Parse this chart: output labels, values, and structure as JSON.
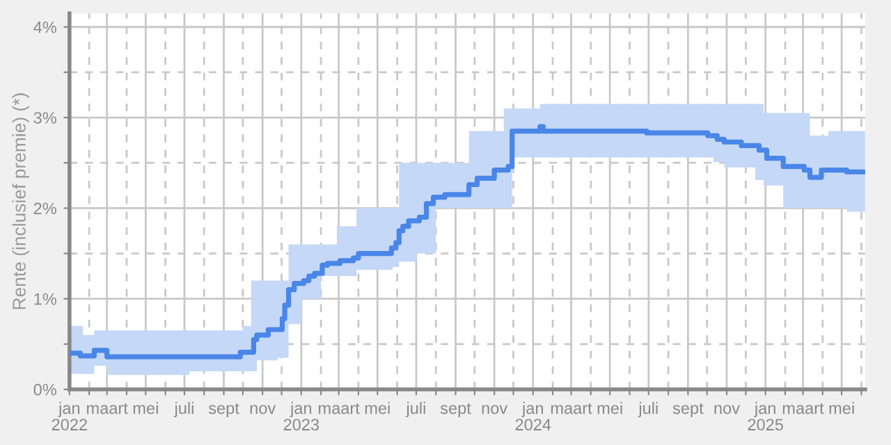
{
  "chart_data": {
    "type": "step",
    "ylabel": "Rente (inclusief premie) (*)",
    "xlim": [
      "2022-01-01",
      "2025-06-07"
    ],
    "ylim": [
      0,
      4.15
    ],
    "xticks": [
      {
        "value": "2022-01-01",
        "label": "jan\n2022"
      },
      {
        "value": "2022-02-01",
        "label": null
      },
      {
        "value": "2022-03-01",
        "label": "maart"
      },
      {
        "value": "2022-04-01",
        "label": null
      },
      {
        "value": "2022-05-01",
        "label": "mei"
      },
      {
        "value": "2022-06-01",
        "label": null
      },
      {
        "value": "2022-07-01",
        "label": "juli"
      },
      {
        "value": "2022-08-01",
        "label": null
      },
      {
        "value": "2022-09-01",
        "label": "sept"
      },
      {
        "value": "2022-10-01",
        "label": null
      },
      {
        "value": "2022-11-01",
        "label": "nov"
      },
      {
        "value": "2022-12-01",
        "label": null
      },
      {
        "value": "2023-01-01",
        "label": "jan\n2023"
      },
      {
        "value": "2023-02-01",
        "label": null
      },
      {
        "value": "2023-03-01",
        "label": "maart"
      },
      {
        "value": "2023-04-01",
        "label": null
      },
      {
        "value": "2023-05-01",
        "label": "mei"
      },
      {
        "value": "2023-06-01",
        "label": null
      },
      {
        "value": "2023-07-01",
        "label": "juli"
      },
      {
        "value": "2023-08-01",
        "label": null
      },
      {
        "value": "2023-09-01",
        "label": "sept"
      },
      {
        "value": "2023-10-01",
        "label": null
      },
      {
        "value": "2023-11-01",
        "label": "nov"
      },
      {
        "value": "2023-12-01",
        "label": null
      },
      {
        "value": "2024-01-01",
        "label": "jan\n2024"
      },
      {
        "value": "2024-02-01",
        "label": null
      },
      {
        "value": "2024-03-01",
        "label": "maart"
      },
      {
        "value": "2024-04-01",
        "label": null
      },
      {
        "value": "2024-05-01",
        "label": "mei"
      },
      {
        "value": "2024-06-01",
        "label": null
      },
      {
        "value": "2024-07-01",
        "label": "juli"
      },
      {
        "value": "2024-08-01",
        "label": null
      },
      {
        "value": "2024-09-01",
        "label": "sept"
      },
      {
        "value": "2024-10-01",
        "label": null
      },
      {
        "value": "2024-11-01",
        "label": "nov"
      },
      {
        "value": "2024-12-01",
        "label": null
      },
      {
        "value": "2025-01-01",
        "label": "jan\n2025"
      },
      {
        "value": "2025-02-01",
        "label": null
      },
      {
        "value": "2025-03-01",
        "label": "maart"
      },
      {
        "value": "2025-04-01",
        "label": null
      },
      {
        "value": "2025-05-01",
        "label": "mei"
      },
      {
        "value": "2025-06-01",
        "label": null
      }
    ],
    "yticks": [
      {
        "value": 0,
        "label": "0%"
      },
      {
        "value": 0.5,
        "label": null
      },
      {
        "value": 1,
        "label": "1%"
      },
      {
        "value": 1.5,
        "label": null
      },
      {
        "value": 2,
        "label": "2%"
      },
      {
        "value": 2.5,
        "label": null
      },
      {
        "value": 3,
        "label": "3%"
      },
      {
        "value": 3.5,
        "label": null
      },
      {
        "value": 4,
        "label": "4%"
      }
    ],
    "grid": true,
    "marker": "none",
    "line_style": "solid",
    "series": [
      {
        "color": "#4a86e8",
        "x": [
          "2022-01-01",
          "2022-01-18",
          "2022-01-22",
          "2022-02-09",
          "2022-03-01",
          "2022-07-09",
          "2022-09-27",
          "2022-10-01",
          "2022-10-14",
          "2022-10-18",
          "2022-10-23",
          "2022-11-10",
          "2022-11-25",
          "2022-12-02",
          "2022-12-06",
          "2022-12-12",
          "2022-12-21",
          "2023-01-01",
          "2023-01-05",
          "2023-01-13",
          "2023-01-22",
          "2023-02-01",
          "2023-02-03",
          "2023-02-11",
          "2023-02-26",
          "2023-03-03",
          "2023-03-24",
          "2023-03-29",
          "2023-04-01",
          "2023-05-23",
          "2023-05-25",
          "2023-05-30",
          "2023-06-04",
          "2023-06-10",
          "2023-06-19",
          "2023-07-02",
          "2023-07-06",
          "2023-07-17",
          "2023-07-28",
          "2023-08-01",
          "2023-08-15",
          "2023-09-22",
          "2023-10-05",
          "2023-11-01",
          "2023-11-16",
          "2023-11-23",
          "2023-11-29",
          "2024-01-12",
          "2024-01-17",
          "2024-06-28",
          "2024-10-02",
          "2024-10-11",
          "2024-10-17",
          "2024-10-28",
          "2024-11-24",
          "2024-12-16",
          "2024-12-22",
          "2024-12-29",
          "2025-01-03",
          "2025-01-29",
          "2025-03-03",
          "2025-03-12",
          "2025-03-30",
          "2025-04-10",
          "2025-05-09",
          "2025-06-07"
        ],
        "values": [
          0.4,
          0.37,
          0.37,
          0.43,
          0.36,
          0.36,
          0.41,
          0.41,
          0.41,
          0.55,
          0.6,
          0.66,
          0.66,
          0.78,
          0.93,
          1.1,
          1.17,
          1.17,
          1.2,
          1.25,
          1.28,
          1.28,
          1.37,
          1.39,
          1.39,
          1.42,
          1.45,
          1.45,
          1.5,
          1.56,
          1.56,
          1.62,
          1.75,
          1.8,
          1.86,
          1.86,
          1.9,
          2.05,
          2.12,
          2.12,
          2.15,
          2.26,
          2.33,
          2.42,
          2.42,
          2.46,
          2.85,
          2.9,
          2.85,
          2.83,
          2.8,
          2.8,
          2.76,
          2.73,
          2.69,
          2.69,
          2.64,
          2.64,
          2.55,
          2.46,
          2.42,
          2.34,
          2.42,
          2.42,
          2.4,
          2.4
        ],
        "lower": [
          0.17,
          0.17,
          0.17,
          0.26,
          0.16,
          0.2,
          0.2,
          0.2,
          0.2,
          0.2,
          0.32,
          0.32,
          0.35,
          0.35,
          0.35,
          0.72,
          0.72,
          1.0,
          1.0,
          1.0,
          1.0,
          1.25,
          1.25,
          1.25,
          1.25,
          1.25,
          1.25,
          1.32,
          1.32,
          1.32,
          1.35,
          1.35,
          1.41,
          1.41,
          1.41,
          1.5,
          1.5,
          1.5,
          1.5,
          2.0,
          2.0,
          2.0,
          2.0,
          2.0,
          2.0,
          2.0,
          2.56,
          2.56,
          2.56,
          2.56,
          2.56,
          2.51,
          2.51,
          2.45,
          2.45,
          2.31,
          2.31,
          2.25,
          2.25,
          2.0,
          2.0,
          2.0,
          2.0,
          2.0,
          1.96,
          1.96
        ],
        "upper": [
          0.7,
          0.7,
          0.6,
          0.65,
          0.65,
          0.65,
          0.65,
          0.7,
          1.2,
          1.2,
          1.2,
          1.2,
          1.2,
          1.2,
          1.2,
          1.6,
          1.6,
          1.6,
          1.6,
          1.6,
          1.6,
          1.6,
          1.6,
          1.6,
          1.8,
          1.8,
          1.8,
          2.0,
          2.0,
          2.0,
          2.0,
          2.0,
          2.5,
          2.5,
          2.5,
          2.5,
          2.5,
          2.5,
          2.5,
          2.5,
          2.5,
          2.85,
          2.85,
          2.85,
          3.1,
          3.1,
          3.1,
          3.15,
          3.15,
          3.15,
          3.15,
          3.15,
          3.15,
          3.15,
          3.15,
          3.15,
          3.15,
          3.05,
          3.05,
          3.05,
          3.05,
          2.8,
          2.8,
          2.85,
          2.85,
          2.85
        ]
      }
    ]
  }
}
